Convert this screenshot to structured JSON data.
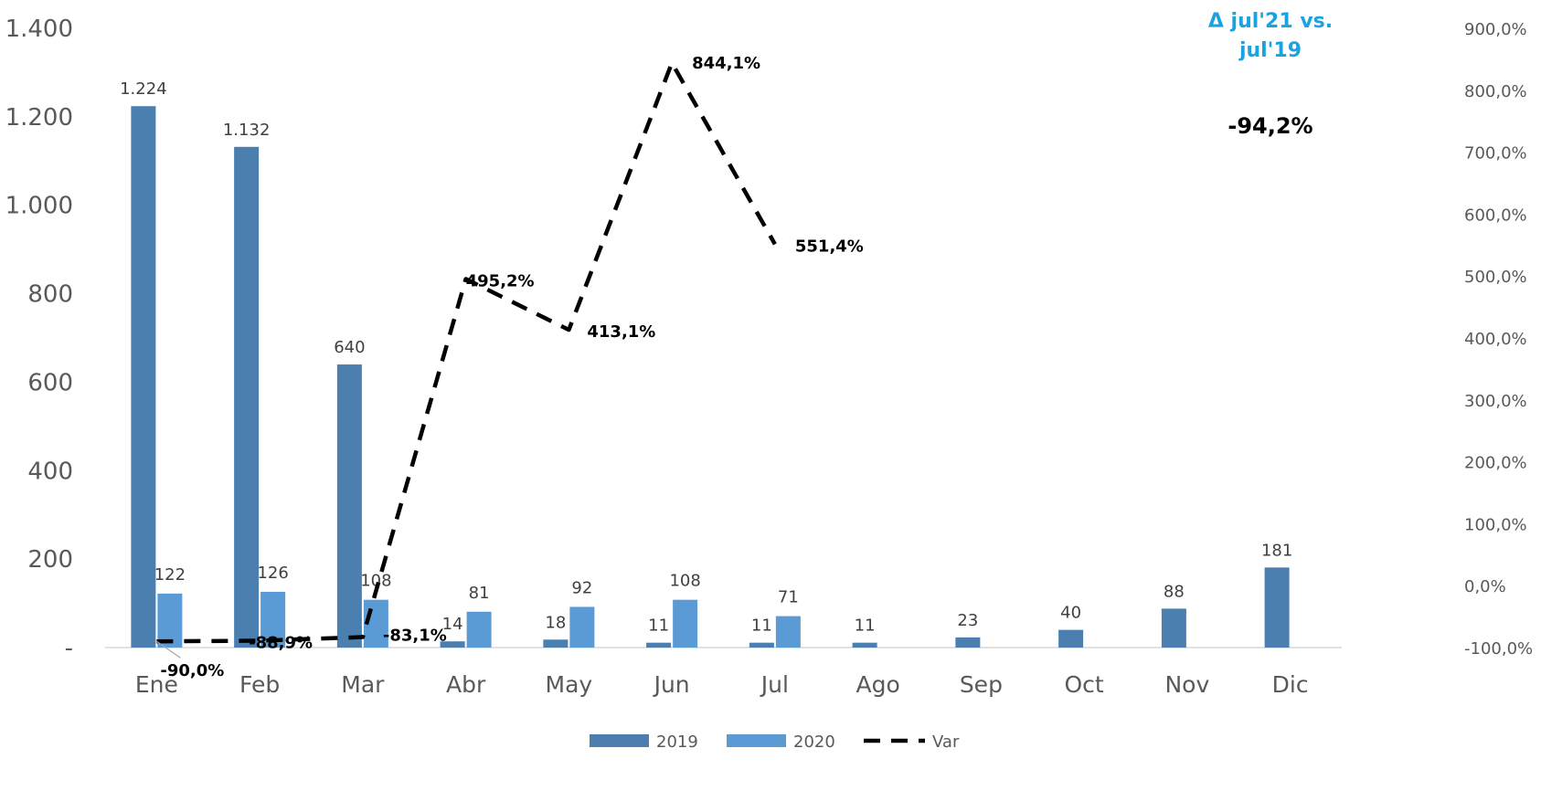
{
  "note": {
    "title": "Δ jul'21 vs.\njul'19",
    "value": "-94,2%",
    "color": "#1aa3e0"
  },
  "chart_data": {
    "type": "bar",
    "categories": [
      "Ene",
      "Feb",
      "Mar",
      "Abr",
      "May",
      "Jun",
      "Jul",
      "Ago",
      "Sep",
      "Oct",
      "Nov",
      "Dic"
    ],
    "series": [
      {
        "name": "2019",
        "color": "#4a7fb0",
        "values": [
          1224,
          1132,
          640,
          14,
          18,
          11,
          11,
          11,
          23,
          40,
          88,
          181
        ],
        "labels": [
          "1.224",
          "1.132",
          "640",
          "14",
          "18",
          "11",
          "11",
          "11",
          "23",
          "40",
          "88",
          "181"
        ]
      },
      {
        "name": "2020",
        "color": "#5b9bd5",
        "values": [
          122,
          126,
          108,
          81,
          92,
          108,
          71,
          null,
          null,
          null,
          null,
          null
        ],
        "labels": [
          "122",
          "126",
          "108",
          "81",
          "92",
          "108",
          "71",
          "",
          "",
          "",
          "",
          ""
        ]
      }
    ],
    "line": {
      "name": "Var",
      "axis": "right",
      "style": "dashed",
      "color": "#000000",
      "values": [
        -90.0,
        -88.9,
        -83.1,
        495.2,
        413.1,
        844.1,
        551.4,
        null,
        null,
        null,
        null,
        null
      ],
      "labels": [
        "-90,0%",
        "-88,9%",
        "-83,1%",
        "495,2%",
        "413,1%",
        "844,1%",
        "551,4%",
        "",
        "",
        "",
        "",
        ""
      ]
    },
    "y_left": {
      "range": [
        0,
        1400
      ],
      "ticks": [
        0,
        200,
        400,
        600,
        800,
        1000,
        1200,
        1400
      ],
      "tick_labels": [
        "-",
        "200",
        "400",
        "600",
        "800",
        "1.000",
        "1.200",
        "1.400"
      ]
    },
    "y_right": {
      "range": [
        -100,
        900
      ],
      "ticks": [
        -100,
        0,
        100,
        200,
        300,
        400,
        500,
        600,
        700,
        800,
        900
      ],
      "tick_labels": [
        "-100,0%",
        "0,0%",
        "100,0%",
        "200,0%",
        "300,0%",
        "400,0%",
        "500,0%",
        "600,0%",
        "700,0%",
        "800,0%",
        "900,0%"
      ]
    },
    "legend": {
      "position": "bottom",
      "items": [
        "2019",
        "2020",
        "Var"
      ]
    },
    "grid": false
  }
}
